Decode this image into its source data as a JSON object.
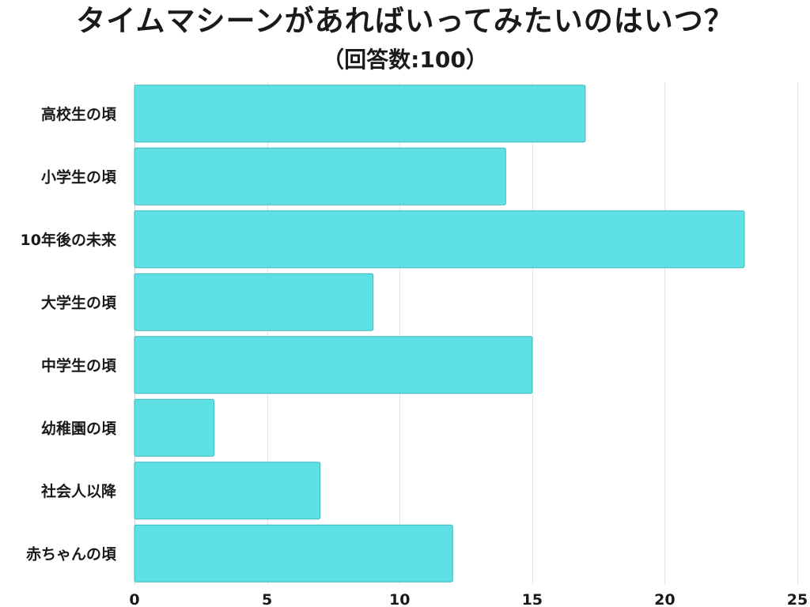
{
  "chart_data": {
    "type": "bar",
    "orientation": "horizontal",
    "title": "タイムマシーンがあればいってみたいのはいつ？",
    "subtitle": "（回答数:100）",
    "categories": [
      "高校生の頃",
      "小学生の頃",
      "10年後の未来",
      "大学生の頃",
      "中学生の頃",
      "幼稚園の頃",
      "社会人以降",
      "赤ちゃんの頃"
    ],
    "values": [
      17,
      14,
      23,
      9,
      15,
      3,
      7,
      12
    ],
    "xlim": [
      0,
      25
    ],
    "xticks": [
      0,
      5,
      10,
      15,
      20,
      25
    ],
    "xlabel": "",
    "ylabel": "",
    "grid": true,
    "legend": "none",
    "bar_color": "#5ee0e4",
    "bar_stroke": "#3fb8bd"
  }
}
